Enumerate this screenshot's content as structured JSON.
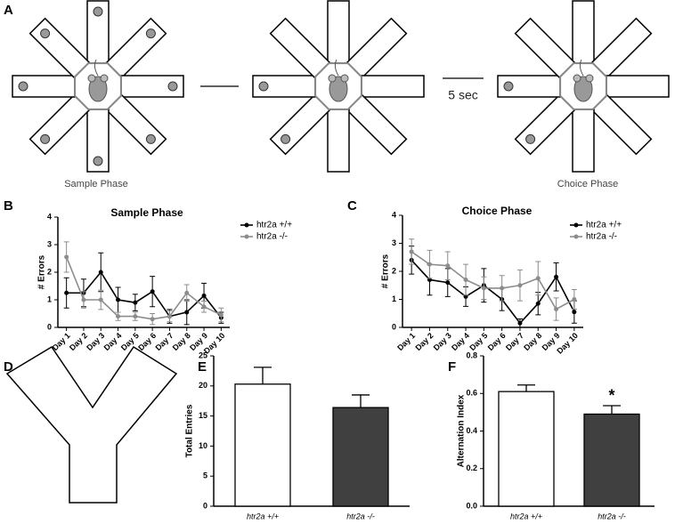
{
  "panel_labels": [
    "A",
    "B",
    "C",
    "D",
    "E",
    "F"
  ],
  "diagram": {
    "phases": [
      "Sample Phase",
      "Choice Phase"
    ],
    "delay": "5 sec"
  },
  "chart_data": [
    {
      "type": "line",
      "title": "Sample Phase",
      "ylabel": "# Errors",
      "categories": [
        "Day 1",
        "Day 2",
        "Day 3",
        "Day 4",
        "Day 5",
        "Day 6",
        "Day 7",
        "Day 8",
        "Day 9",
        "Day 10"
      ],
      "series": [
        {
          "name": "htr2a +/+",
          "color": "#000000",
          "values": [
            1.25,
            1.25,
            2.0,
            1.0,
            0.9,
            1.3,
            0.4,
            0.55,
            1.15,
            0.35
          ],
          "errors": [
            0.55,
            0.5,
            0.7,
            0.45,
            0.3,
            0.55,
            0.25,
            0.45,
            0.45,
            0.2
          ]
        },
        {
          "name": "htr2a -/-",
          "color": "#8c8c8c",
          "values": [
            2.55,
            1.0,
            1.0,
            0.4,
            0.4,
            0.3,
            0.4,
            1.25,
            0.75,
            0.45
          ],
          "errors": [
            0.55,
            0.3,
            0.35,
            0.15,
            0.15,
            0.2,
            0.2,
            0.3,
            0.2,
            0.25
          ]
        }
      ],
      "ylim": [
        0,
        4
      ],
      "yticks": [
        0,
        1,
        2,
        3,
        4
      ]
    },
    {
      "type": "line",
      "title": "Choice Phase",
      "ylabel": "# Errors",
      "categories": [
        "Day 1",
        "Day 2",
        "Day 3",
        "Day 4",
        "Day 5",
        "Day 6",
        "Day 7",
        "Day 8",
        "Day 9",
        "Day 10"
      ],
      "series": [
        {
          "name": "htr2a +/+",
          "color": "#000000",
          "values": [
            2.4,
            1.7,
            1.6,
            1.1,
            1.5,
            1.0,
            0.15,
            0.85,
            1.8,
            0.55
          ],
          "errors": [
            0.5,
            0.55,
            0.5,
            0.35,
            0.6,
            0.4,
            0.15,
            0.4,
            0.5,
            0.4
          ]
        },
        {
          "name": "htr2a -/-",
          "color": "#8c8c8c",
          "values": [
            2.7,
            2.25,
            2.2,
            1.7,
            1.4,
            1.4,
            1.5,
            1.75,
            0.65,
            1.0
          ],
          "errors": [
            0.45,
            0.5,
            0.5,
            0.55,
            0.4,
            0.45,
            0.55,
            0.6,
            0.4,
            0.35
          ]
        }
      ],
      "ylim": [
        0,
        4
      ],
      "yticks": [
        0,
        1,
        2,
        3,
        4
      ]
    },
    {
      "type": "bar",
      "ylabel": "Total Entries",
      "categories": [
        "htr2a +/+",
        "htr2a -/-"
      ],
      "values": [
        20.3,
        16.4
      ],
      "errors": [
        2.8,
        2.1
      ],
      "colors": [
        "#ffffff",
        "#404040"
      ],
      "ylim": [
        0,
        25
      ],
      "yticks": [
        0,
        5,
        10,
        15,
        20,
        25
      ]
    },
    {
      "type": "bar",
      "ylabel": "Alternation Index",
      "categories": [
        "htr2a +/+",
        "htr2a -/-"
      ],
      "values": [
        0.61,
        0.49
      ],
      "errors": [
        0.035,
        0.045
      ],
      "colors": [
        "#ffffff",
        "#404040"
      ],
      "annotation": "*",
      "ylim": [
        0,
        0.8
      ],
      "yticks": [
        {
          "value": 0,
          "label": "0.0"
        },
        0.2,
        0.4,
        0.6,
        0.8
      ]
    }
  ]
}
